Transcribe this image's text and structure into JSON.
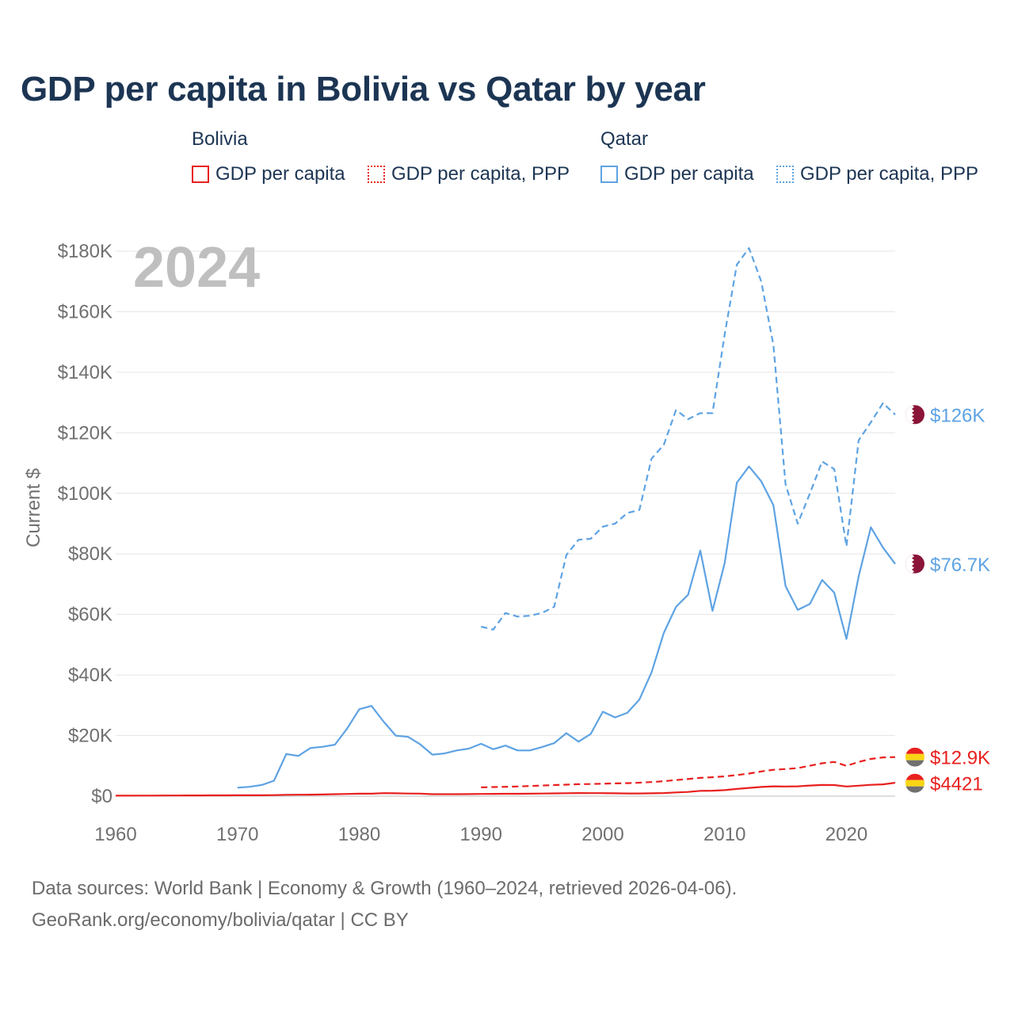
{
  "title": "GDP per capita in Bolivia vs Qatar by year",
  "legend": {
    "bolivia": {
      "title": "Bolivia",
      "gdp_label": "GDP per capita",
      "ppp_label": "GDP per capita, PPP",
      "color": "#e8201e"
    },
    "qatar": {
      "title": "Qatar",
      "gdp_label": "GDP per capita",
      "ppp_label": "GDP per capita, PPP",
      "color": "#5ea3e3"
    }
  },
  "footer": {
    "line1": "Data sources: World Bank | Economy & Growth (1960–2024, retrieved 2026-04-06).",
    "line2": "GeoRank.org/economy/bolivia/qatar | CC BY"
  },
  "chart_data": {
    "type": "line",
    "title": "GDP per capita in Bolivia vs Qatar by year",
    "ylabel": "Current $",
    "xlabel": "",
    "year_watermark": "2024",
    "xlim": [
      1960,
      2024
    ],
    "ylim": [
      0,
      180000
    ],
    "x_ticks": [
      "1960",
      "1970",
      "1980",
      "1990",
      "2000",
      "2010",
      "2020"
    ],
    "y_ticks": [
      "$0",
      "$20K",
      "$40K",
      "$60K",
      "$80K",
      "$100K",
      "$120K",
      "$140K",
      "$160K",
      "$180K"
    ],
    "grid": true,
    "end_labels": {
      "qatar_ppp": "$126K",
      "qatar_gdp": "$76.7K",
      "bolivia_ppp": "$12.9K",
      "bolivia_gdp": "$4421"
    },
    "series": [
      {
        "name": "Qatar GDP per capita",
        "key": "qatar_gdp",
        "color": "#5ea3e3",
        "dash": false,
        "x": [
          1970,
          1971,
          1972,
          1973,
          1974,
          1975,
          1976,
          1977,
          1978,
          1979,
          1980,
          1981,
          1982,
          1983,
          1984,
          1985,
          1986,
          1987,
          1988,
          1989,
          1990,
          1991,
          1992,
          1993,
          1994,
          1995,
          1996,
          1997,
          1998,
          1999,
          2000,
          2001,
          2002,
          2003,
          2004,
          2005,
          2006,
          2007,
          2008,
          2009,
          2010,
          2011,
          2012,
          2013,
          2014,
          2015,
          2016,
          2017,
          2018,
          2019,
          2020,
          2021,
          2022,
          2023,
          2024
        ],
        "values": [
          2800,
          3100,
          3700,
          5100,
          13900,
          13300,
          15900,
          16300,
          17000,
          22300,
          28700,
          29800,
          24600,
          20000,
          19600,
          17100,
          13700,
          14100,
          15100,
          15700,
          17300,
          15500,
          16700,
          15100,
          15100,
          16200,
          17500,
          20800,
          18000,
          20500,
          27900,
          26000,
          27500,
          31900,
          40900,
          53900,
          62500,
          66500,
          81100,
          61200,
          77000,
          103500,
          108900,
          104000,
          96100,
          69400,
          61500,
          63500,
          71400,
          67200,
          51900,
          72600,
          88800,
          82100,
          76700
        ]
      },
      {
        "name": "Qatar GDP per capita, PPP",
        "key": "qatar_ppp",
        "color": "#5ea3e3",
        "dash": true,
        "x": [
          1990,
          1991,
          1992,
          1993,
          1994,
          1995,
          1996,
          1997,
          1998,
          1999,
          2000,
          2001,
          2002,
          2003,
          2004,
          2005,
          2006,
          2007,
          2008,
          2009,
          2010,
          2011,
          2012,
          2013,
          2014,
          2015,
          2016,
          2017,
          2018,
          2019,
          2020,
          2021,
          2022,
          2023,
          2024
        ],
        "values": [
          56000,
          55000,
          60500,
          59300,
          59600,
          60500,
          62500,
          79600,
          84700,
          85000,
          89000,
          90000,
          93500,
          94500,
          111500,
          116000,
          127500,
          124500,
          126500,
          126500,
          152500,
          175500,
          181000,
          170000,
          149000,
          103000,
          90000,
          100000,
          110500,
          108000,
          82500,
          117500,
          123500,
          129800,
          126000
        ]
      },
      {
        "name": "Bolivia GDP per capita",
        "key": "bolivia_gdp",
        "color": "#e8201e",
        "dash": false,
        "x": [
          1960,
          1961,
          1962,
          1963,
          1964,
          1965,
          1966,
          1967,
          1968,
          1969,
          1970,
          1971,
          1972,
          1973,
          1974,
          1975,
          1976,
          1977,
          1978,
          1979,
          1980,
          1981,
          1982,
          1983,
          1984,
          1985,
          1986,
          1987,
          1988,
          1989,
          1990,
          1991,
          1992,
          1993,
          1994,
          1995,
          1996,
          1997,
          1998,
          1999,
          2000,
          2001,
          2002,
          2003,
          2004,
          2005,
          2006,
          2007,
          2008,
          2009,
          2010,
          2011,
          2012,
          2013,
          2014,
          2015,
          2016,
          2017,
          2018,
          2019,
          2020,
          2021,
          2022,
          2023,
          2024
        ],
        "values": [
          170,
          170,
          180,
          190,
          200,
          210,
          230,
          240,
          250,
          260,
          280,
          290,
          300,
          340,
          440,
          460,
          510,
          560,
          650,
          740,
          800,
          820,
          1000,
          950,
          870,
          830,
          650,
          650,
          660,
          690,
          720,
          760,
          790,
          780,
          800,
          860,
          920,
          980,
          1020,
          1000,
          1000,
          950,
          900,
          900,
          950,
          1030,
          1230,
          1390,
          1750,
          1800,
          1980,
          2380,
          2710,
          3030,
          3240,
          3180,
          3250,
          3500,
          3680,
          3670,
          3180,
          3460,
          3740,
          3900,
          4421
        ]
      },
      {
        "name": "Bolivia GDP per capita, PPP",
        "key": "bolivia_ppp",
        "color": "#e8201e",
        "dash": true,
        "x": [
          1990,
          1991,
          1992,
          1993,
          1994,
          1995,
          1996,
          1997,
          1998,
          1999,
          2000,
          2001,
          2002,
          2003,
          2004,
          2005,
          2006,
          2007,
          2008,
          2009,
          2010,
          2011,
          2012,
          2013,
          2014,
          2015,
          2016,
          2017,
          2018,
          2019,
          2020,
          2021,
          2022,
          2023,
          2024
        ],
        "values": [
          2900,
          3000,
          3100,
          3200,
          3350,
          3500,
          3650,
          3800,
          3950,
          4000,
          4100,
          4200,
          4300,
          4450,
          4650,
          4950,
          5300,
          5650,
          6050,
          6250,
          6550,
          6950,
          7450,
          8150,
          8700,
          8950,
          9250,
          10050,
          10850,
          11300,
          10000,
          11300,
          12300,
          12800,
          12900
        ]
      }
    ]
  }
}
